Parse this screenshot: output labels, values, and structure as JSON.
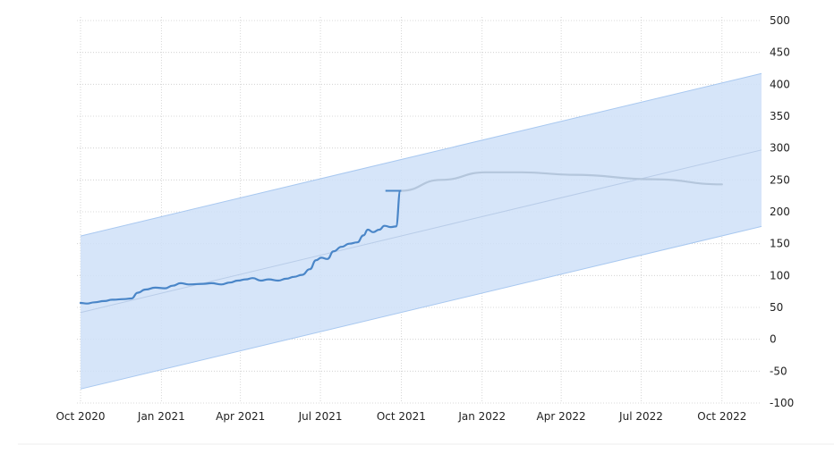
{
  "chart_data": {
    "type": "line",
    "title": "",
    "xlabel": "",
    "ylabel": "",
    "y_axis_position": "right",
    "grid": true,
    "legend": "none",
    "xlim": [
      "2020-10-01",
      "2022-11-15"
    ],
    "ylim": [
      -100,
      500
    ],
    "x_ticks": [
      {
        "label": "Oct 2020",
        "date": "2020-10-01"
      },
      {
        "label": "Jan 2021",
        "date": "2021-01-01"
      },
      {
        "label": "Apr 2021",
        "date": "2021-04-01"
      },
      {
        "label": "Jul 2021",
        "date": "2021-07-01"
      },
      {
        "label": "Oct 2021",
        "date": "2021-10-01"
      },
      {
        "label": "Jan 2022",
        "date": "2022-01-01"
      },
      {
        "label": "Apr 2022",
        "date": "2022-04-01"
      },
      {
        "label": "Jul 2022",
        "date": "2022-07-01"
      },
      {
        "label": "Oct 2022",
        "date": "2022-10-01"
      }
    ],
    "y_ticks": [
      500,
      450,
      400,
      350,
      300,
      250,
      200,
      150,
      100,
      50,
      0,
      -50,
      -100
    ],
    "colors": {
      "actual": "#4a86c8",
      "forecast": "#b4c6dc",
      "band_fill": "#cfe0f8",
      "band_edge": "#a8c8f0",
      "trend": "#b8cce8",
      "grid": "#cccccc"
    },
    "series": [
      {
        "role": "actual",
        "points": [
          [
            "2020-10-01",
            57
          ],
          [
            "2020-10-08",
            56
          ],
          [
            "2020-10-17",
            58
          ],
          [
            "2020-10-28",
            60
          ],
          [
            "2020-11-06",
            62
          ],
          [
            "2020-11-20",
            63
          ],
          [
            "2020-11-28",
            64
          ],
          [
            "2020-12-05",
            73
          ],
          [
            "2020-12-14",
            78
          ],
          [
            "2020-12-25",
            81
          ],
          [
            "2021-01-05",
            80
          ],
          [
            "2021-01-14",
            84
          ],
          [
            "2021-01-23",
            88
          ],
          [
            "2021-02-01",
            86
          ],
          [
            "2021-02-18",
            87
          ],
          [
            "2021-02-27",
            88
          ],
          [
            "2021-03-10",
            86
          ],
          [
            "2021-03-20",
            89
          ],
          [
            "2021-03-29",
            92
          ],
          [
            "2021-04-07",
            94
          ],
          [
            "2021-04-15",
            96
          ],
          [
            "2021-04-24",
            92
          ],
          [
            "2021-05-03",
            94
          ],
          [
            "2021-05-14",
            92
          ],
          [
            "2021-05-23",
            95
          ],
          [
            "2021-06-01",
            98
          ],
          [
            "2021-06-10",
            101
          ],
          [
            "2021-06-19",
            110
          ],
          [
            "2021-06-26",
            124
          ],
          [
            "2021-07-02",
            128
          ],
          [
            "2021-07-09",
            126
          ],
          [
            "2021-07-16",
            138
          ],
          [
            "2021-07-25",
            145
          ],
          [
            "2021-08-03",
            150
          ],
          [
            "2021-08-12",
            152
          ],
          [
            "2021-08-19",
            163
          ],
          [
            "2021-08-24",
            172
          ],
          [
            "2021-08-30",
            168
          ],
          [
            "2021-09-06",
            172
          ],
          [
            "2021-09-12",
            178
          ],
          [
            "2021-09-19",
            176
          ],
          [
            "2021-09-25",
            177
          ],
          [
            "2021-09-30",
            233
          ]
        ]
      },
      {
        "role": "forecast",
        "points": [
          [
            "2021-10-01",
            233
          ],
          [
            "2021-11-15",
            250
          ],
          [
            "2022-01-05",
            262
          ],
          [
            "2022-02-15",
            262
          ],
          [
            "2022-04-15",
            258
          ],
          [
            "2022-07-15",
            251
          ],
          [
            "2022-10-01",
            243
          ]
        ]
      }
    ],
    "last_value_marker": {
      "date_from": "2021-09-13",
      "date_to": "2021-10-01",
      "value": 233
    },
    "trend_line": [
      [
        "2020-10-01",
        42
      ],
      [
        "2022-11-15",
        297
      ]
    ],
    "band": {
      "upper": [
        [
          "2020-10-01",
          162
        ],
        [
          "2022-11-15",
          417
        ]
      ],
      "lower": [
        [
          "2020-10-01",
          -78
        ],
        [
          "2022-11-15",
          177
        ]
      ]
    }
  }
}
